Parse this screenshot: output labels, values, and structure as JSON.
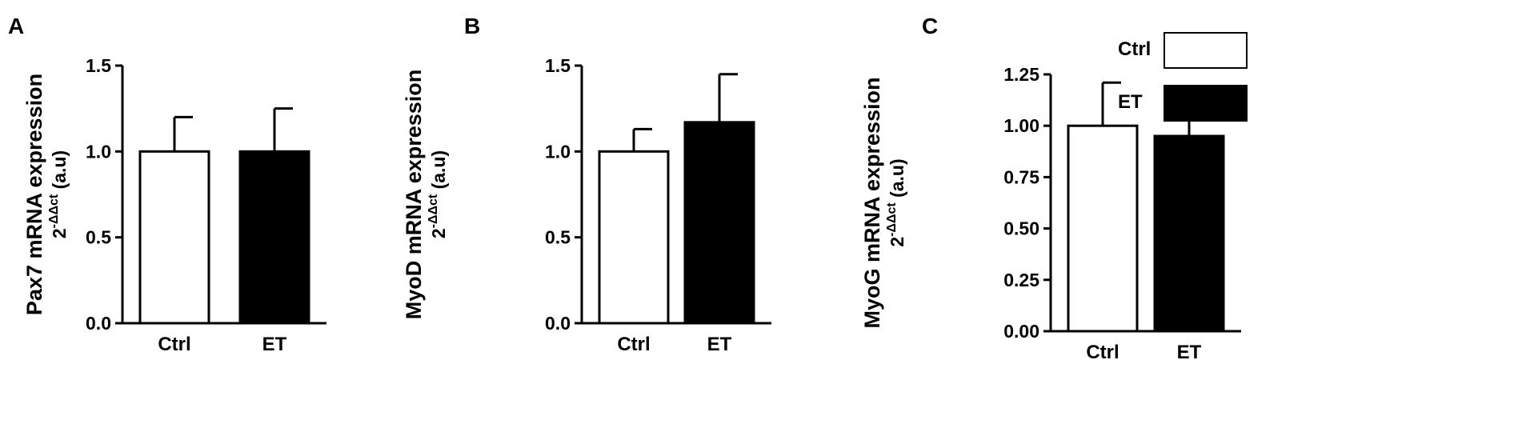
{
  "legend": {
    "entries": [
      {
        "label": "Ctrl",
        "color": "#ffffff"
      },
      {
        "label": "ET",
        "color": "#000000"
      }
    ]
  },
  "chart_data": [
    {
      "type": "bar",
      "panel": "A",
      "categories": [
        "Ctrl",
        "ET"
      ],
      "values": [
        1.0,
        1.0
      ],
      "errors": [
        0.2,
        0.25
      ],
      "ylabel": "Pax7 mRNA expression",
      "ylabel_sub": {
        "base": "2",
        "exp": "-ΔΔct",
        "unit": "(a.u)"
      },
      "ylim": [
        0,
        1.5
      ],
      "yticks": [
        "0.0",
        "0.5",
        "1.0",
        "1.5"
      ],
      "colors": [
        "#ffffff",
        "#000000"
      ]
    },
    {
      "type": "bar",
      "panel": "B",
      "categories": [
        "Ctrl",
        "ET"
      ],
      "values": [
        1.0,
        1.17
      ],
      "errors": [
        0.13,
        0.28
      ],
      "ylabel": "MyoD mRNA expression",
      "ylabel_sub": {
        "base": "2",
        "exp": "-ΔΔct",
        "unit": "(a.u)"
      },
      "ylim": [
        0,
        1.5
      ],
      "yticks": [
        "0.0",
        "0.5",
        "1.0",
        "1.5"
      ],
      "colors": [
        "#ffffff",
        "#000000"
      ]
    },
    {
      "type": "bar",
      "panel": "C",
      "categories": [
        "Ctrl",
        "ET"
      ],
      "values": [
        1.0,
        0.95
      ],
      "errors": [
        0.21,
        0.22
      ],
      "ylabel": "MyoG mRNA expression",
      "ylabel_sub": {
        "base": "2",
        "exp": "-ΔΔct",
        "unit": "(a.u)"
      },
      "ylim": [
        0,
        1.25
      ],
      "yticks": [
        "0.00",
        "0.25",
        "0.50",
        "0.75",
        "1.00",
        "1.25"
      ],
      "colors": [
        "#ffffff",
        "#000000"
      ]
    }
  ]
}
